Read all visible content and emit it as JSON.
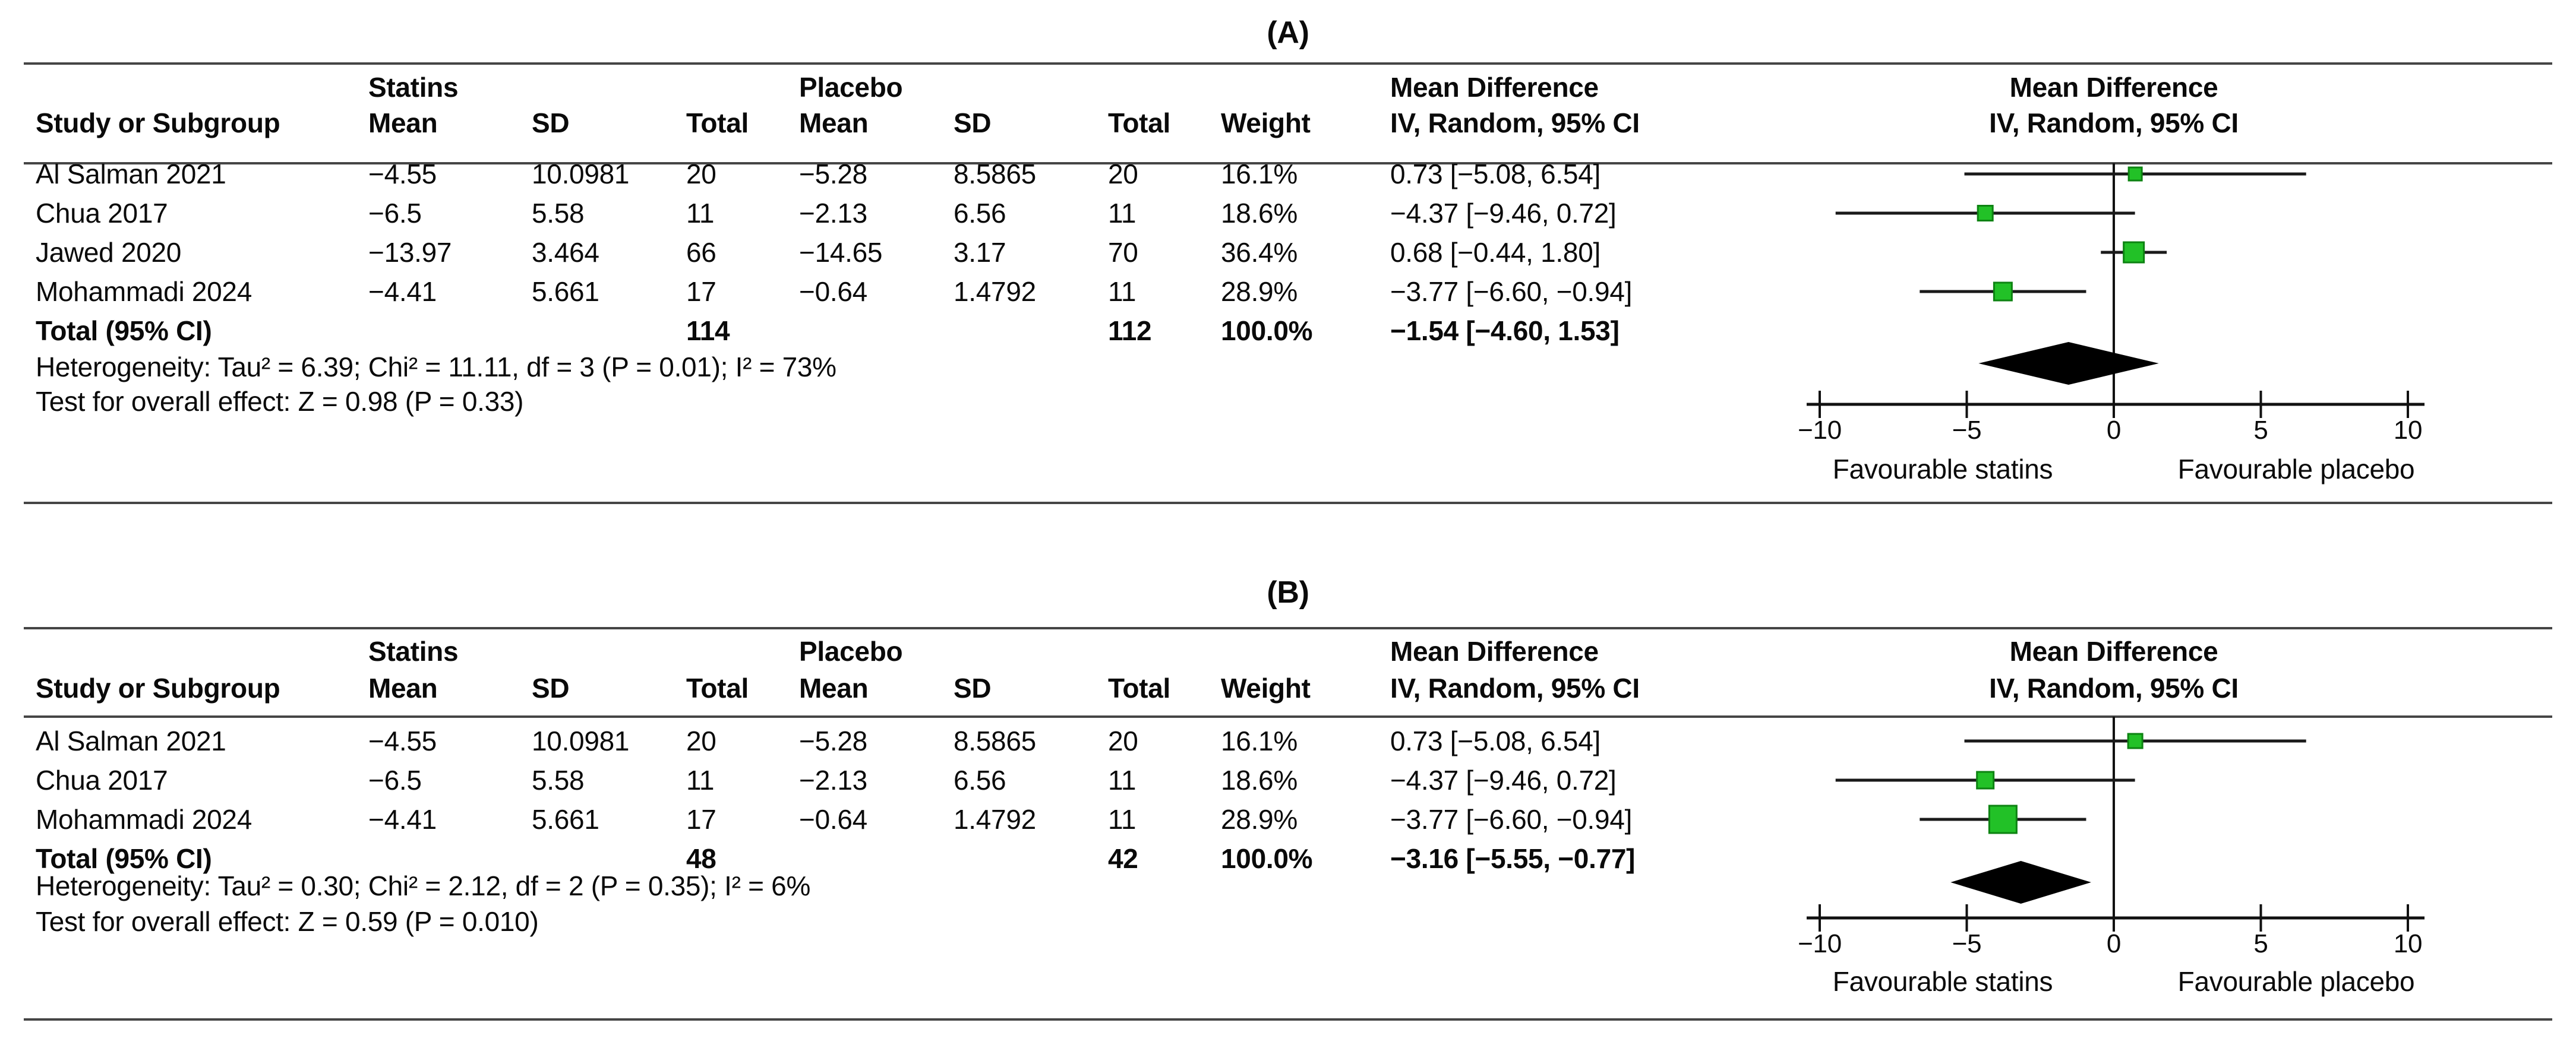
{
  "panels": [
    {
      "title": "(A)",
      "headers": {
        "group1": "Statins",
        "group2": "Placebo",
        "md": "Mean Difference",
        "md_sub": "IV, Random, 95% CI",
        "plot_md": "Mean Difference",
        "plot_sub": "IV, Random, 95% CI",
        "study": "Study or Subgroup",
        "mean1": "Mean",
        "sd1": "SD",
        "total1": "Total",
        "mean2": "Mean",
        "sd2": "SD",
        "total2": "Total",
        "weight": "Weight"
      },
      "rows": [
        {
          "study": "Al Salman 2021",
          "mean1": "−4.55",
          "sd1": "10.0981",
          "total1": "20",
          "mean2": "−5.28",
          "sd2": "8.5865",
          "total2": "20",
          "weight": "16.1%",
          "md": "0.73 [−5.08, 6.54]"
        },
        {
          "study": "Chua 2017",
          "mean1": "−6.5",
          "sd1": "5.58",
          "total1": "11",
          "mean2": "−2.13",
          "sd2": "6.56",
          "total2": "11",
          "weight": "18.6%",
          "md": "−4.37 [−9.46, 0.72]"
        },
        {
          "study": "Jawed 2020",
          "mean1": "−13.97",
          "sd1": "3.464",
          "total1": "66",
          "mean2": "−14.65",
          "sd2": "3.17",
          "total2": "70",
          "weight": "36.4%",
          "md": "0.68 [−0.44, 1.80]"
        },
        {
          "study": "Mohammadi 2024",
          "mean1": "−4.41",
          "sd1": "5.661",
          "total1": "17",
          "mean2": "−0.64",
          "sd2": "1.4792",
          "total2": "11",
          "weight": "28.9%",
          "md": "−3.77 [−6.60, −0.94]"
        }
      ],
      "total_row": {
        "label": "Total (95% CI)",
        "total1": "114",
        "total2": "112",
        "weight": "100.0%",
        "md": "−1.54 [−4.60, 1.53]"
      },
      "heterogeneity": "Heterogeneity: Tau² = 6.39; Chi² = 11.11, df = 3 (P = 0.01); I² = 73%",
      "overall_effect": "Test for overall effect: Z = 0.98 (P = 0.33)"
    },
    {
      "title": "(B)",
      "headers": {
        "group1": "Statins",
        "group2": "Placebo",
        "md": "Mean Difference",
        "md_sub": "IV, Random, 95% CI",
        "plot_md": "Mean Difference",
        "plot_sub": "IV, Random, 95% CI",
        "study": "Study or Subgroup",
        "mean1": "Mean",
        "sd1": "SD",
        "total1": "Total",
        "mean2": "Mean",
        "sd2": "SD",
        "total2": "Total",
        "weight": "Weight"
      },
      "rows": [
        {
          "study": "Al Salman 2021",
          "mean1": "−4.55",
          "sd1": "10.0981",
          "total1": "20",
          "mean2": "−5.28",
          "sd2": "8.5865",
          "total2": "20",
          "weight": "16.1%",
          "md": "0.73 [−5.08, 6.54]"
        },
        {
          "study": "Chua 2017",
          "mean1": "−6.5",
          "sd1": "5.58",
          "total1": "11",
          "mean2": "−2.13",
          "sd2": "6.56",
          "total2": "11",
          "weight": "18.6%",
          "md": "−4.37 [−9.46, 0.72]"
        },
        {
          "study": "Mohammadi 2024",
          "mean1": "−4.41",
          "sd1": "5.661",
          "total1": "17",
          "mean2": "−0.64",
          "sd2": "1.4792",
          "total2": "11",
          "weight": "28.9%",
          "md": "−3.77 [−6.60, −0.94]"
        }
      ],
      "total_row": {
        "label": "Total (95% CI)",
        "total1": "48",
        "total2": "42",
        "weight": "100.0%",
        "md": "−3.16 [−5.55, −0.77]"
      },
      "heterogeneity": "Heterogeneity: Tau² = 0.30; Chi² = 2.12, df = 2 (P = 0.35); I² = 6%",
      "overall_effect": "Test for overall effect: Z = 0.59 (P = 0.010)"
    }
  ],
  "chart_data": [
    {
      "type": "forest",
      "title": "(A)",
      "effect_measure": "Mean Difference, IV, Random, 95% CI",
      "groups": [
        "Statins",
        "Placebo"
      ],
      "studies": [
        {
          "name": "Al Salman 2021",
          "mean_statins": -4.55,
          "sd_statins": 10.0981,
          "n_statins": 20,
          "mean_placebo": -5.28,
          "sd_placebo": 8.5865,
          "n_placebo": 20,
          "weight_pct": 16.1,
          "md": 0.73,
          "ci_low": -5.08,
          "ci_high": 6.54
        },
        {
          "name": "Chua 2017",
          "mean_statins": -6.5,
          "sd_statins": 5.58,
          "n_statins": 11,
          "mean_placebo": -2.13,
          "sd_placebo": 6.56,
          "n_placebo": 11,
          "weight_pct": 18.6,
          "md": -4.37,
          "ci_low": -9.46,
          "ci_high": 0.72
        },
        {
          "name": "Jawed 2020",
          "mean_statins": -13.97,
          "sd_statins": 3.464,
          "n_statins": 66,
          "mean_placebo": -14.65,
          "sd_placebo": 3.17,
          "n_placebo": 70,
          "weight_pct": 36.4,
          "md": 0.68,
          "ci_low": -0.44,
          "ci_high": 1.8
        },
        {
          "name": "Mohammadi 2024",
          "mean_statins": -4.41,
          "sd_statins": 5.661,
          "n_statins": 17,
          "mean_placebo": -0.64,
          "sd_placebo": 1.4792,
          "n_placebo": 11,
          "weight_pct": 28.9,
          "md": -3.77,
          "ci_low": -6.6,
          "ci_high": -0.94
        }
      ],
      "total": {
        "n_statins": 114,
        "n_placebo": 112,
        "weight_pct": 100.0,
        "md": -1.54,
        "ci_low": -4.6,
        "ci_high": 1.53
      },
      "heterogeneity": {
        "tau2": 6.39,
        "chi2": 11.11,
        "df": 3,
        "p": 0.01,
        "i2_pct": 73
      },
      "overall_effect": {
        "z": 0.98,
        "p": 0.33
      },
      "axis": {
        "min": -10,
        "max": 10,
        "ticks": [
          -10,
          -5,
          0,
          5,
          10
        ],
        "left_label": "Favourable statins",
        "right_label": "Favourable placebo"
      },
      "marker_color": "#22c127",
      "marker_border_color": "#0d8312",
      "diamond_color": "#000000"
    },
    {
      "type": "forest",
      "title": "(B)",
      "effect_measure": "Mean Difference, IV, Random, 95% CI",
      "groups": [
        "Statins",
        "Placebo"
      ],
      "studies": [
        {
          "name": "Al Salman 2021",
          "mean_statins": -4.55,
          "sd_statins": 10.0981,
          "n_statins": 20,
          "mean_placebo": -5.28,
          "sd_placebo": 8.5865,
          "n_placebo": 20,
          "weight_pct": 16.1,
          "md": 0.73,
          "ci_low": -5.08,
          "ci_high": 6.54
        },
        {
          "name": "Chua 2017",
          "mean_statins": -6.5,
          "sd_statins": 5.58,
          "n_statins": 11,
          "mean_placebo": -2.13,
          "sd_placebo": 6.56,
          "n_placebo": 11,
          "weight_pct": 18.6,
          "md": -4.37,
          "ci_low": -9.46,
          "ci_high": 0.72
        },
        {
          "name": "Mohammadi 2024",
          "mean_statins": -4.41,
          "sd_statins": 5.661,
          "n_statins": 17,
          "mean_placebo": -0.64,
          "sd_placebo": 1.4792,
          "n_placebo": 11,
          "weight_pct": 28.9,
          "md": -3.77,
          "ci_low": -6.6,
          "ci_high": -0.94
        }
      ],
      "total": {
        "n_statins": 48,
        "n_placebo": 42,
        "weight_pct": 100.0,
        "md": -3.16,
        "ci_low": -5.55,
        "ci_high": -0.77
      },
      "heterogeneity": {
        "tau2": 0.3,
        "chi2": 2.12,
        "df": 2,
        "p": 0.35,
        "i2_pct": 6
      },
      "overall_effect": {
        "z": 0.59,
        "p": 0.01
      },
      "axis": {
        "min": -10,
        "max": 10,
        "ticks": [
          -10,
          -5,
          0,
          5,
          10
        ],
        "left_label": "Favourable statins",
        "right_label": "Favourable placebo"
      },
      "marker_color": "#22c127",
      "marker_border_color": "#0d8312",
      "diamond_color": "#000000"
    }
  ]
}
